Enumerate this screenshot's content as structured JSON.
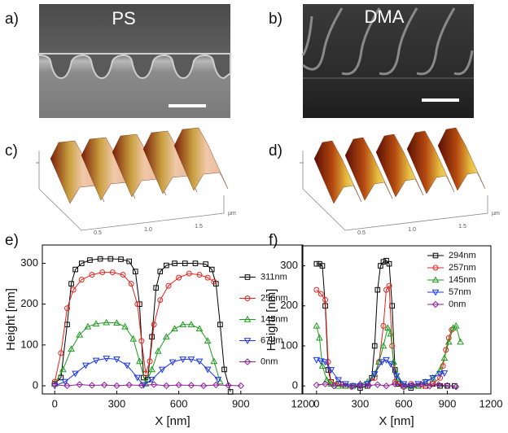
{
  "panels": {
    "a": {
      "label": "a)",
      "text": "PS"
    },
    "b": {
      "label": "b)",
      "text": "DMA"
    },
    "c": {
      "label": "c)",
      "ticks": [
        "0.5",
        "1.0",
        "1.5"
      ],
      "unit": "µm"
    },
    "d": {
      "label": "d)",
      "ticks": [
        "0.5",
        "1.0",
        "1.5"
      ],
      "unit": "µm"
    },
    "e": {
      "label": "e)"
    },
    "f": {
      "label": "f)"
    }
  },
  "chart_data": [
    {
      "type": "line",
      "x_label": "X [nm]",
      "y_label": "Height [nm]",
      "xlim": [
        -60,
        1200
      ],
      "ylim": [
        -20,
        345
      ],
      "xticks": [
        0,
        300,
        600,
        900,
        1200
      ],
      "yticks": [
        0,
        100,
        200,
        300
      ],
      "legend": "center right",
      "series": [
        {
          "name": "311nm",
          "color": "#000000",
          "marker": "square",
          "x": [
            0,
            30,
            60,
            80,
            100,
            130,
            170,
            220,
            270,
            320,
            360,
            390,
            410,
            430,
            450,
            470,
            490,
            510,
            540,
            580,
            630,
            680,
            730,
            760,
            780,
            800,
            820,
            850
          ],
          "values": [
            5,
            20,
            150,
            250,
            285,
            300,
            308,
            311,
            311,
            310,
            305,
            280,
            200,
            20,
            15,
            120,
            240,
            280,
            295,
            300,
            300,
            300,
            298,
            285,
            250,
            150,
            40,
            -15
          ]
        },
        {
          "name": "256nm",
          "color": "#e8201a",
          "marker": "circle",
          "x": [
            0,
            30,
            60,
            90,
            130,
            180,
            230,
            280,
            330,
            370,
            400,
            420,
            440,
            460,
            480,
            510,
            550,
            600,
            650,
            700,
            740,
            770
          ],
          "values": [
            10,
            80,
            190,
            235,
            260,
            272,
            278,
            278,
            272,
            250,
            200,
            110,
            30,
            60,
            150,
            210,
            245,
            265,
            275,
            272,
            265,
            255
          ]
        },
        {
          "name": "145nm",
          "color": "#1e9a1e",
          "marker": "triangle-up",
          "x": [
            0,
            40,
            80,
            120,
            160,
            200,
            250,
            300,
            340,
            380,
            410,
            440,
            470,
            500,
            540,
            580,
            620,
            660,
            700,
            740,
            770,
            800
          ],
          "values": [
            5,
            40,
            90,
            125,
            145,
            152,
            155,
            154,
            145,
            115,
            60,
            5,
            40,
            85,
            120,
            140,
            150,
            150,
            140,
            110,
            60,
            10
          ]
        },
        {
          "name": "67nm",
          "color": "#1a35e8",
          "marker": "triangle-down",
          "x": [
            0,
            50,
            100,
            150,
            200,
            250,
            300,
            350,
            400,
            430,
            470,
            520,
            570,
            620,
            660,
            700,
            740,
            790
          ],
          "values": [
            0,
            10,
            30,
            50,
            62,
            67,
            65,
            50,
            20,
            2,
            15,
            40,
            58,
            65,
            65,
            60,
            40,
            15
          ]
        },
        {
          "name": "0nm",
          "color": "#8e1e9a",
          "marker": "diamond",
          "x": [
            0,
            60,
            120,
            180,
            240,
            300,
            360,
            420,
            480,
            540,
            600,
            660,
            720,
            780,
            840,
            900
          ],
          "values": [
            2,
            0,
            3,
            1,
            2,
            0,
            2,
            1,
            3,
            0,
            2,
            1,
            0,
            2,
            1,
            0
          ]
        }
      ]
    },
    {
      "type": "line",
      "x_label": "X [nm]",
      "y_label": "Height [nm]",
      "xlim": [
        -100,
        1200
      ],
      "ylim": [
        -20,
        350
      ],
      "xticks": [
        0,
        300,
        600,
        900,
        1200
      ],
      "yticks": [
        0,
        100,
        200,
        300
      ],
      "legend": "upper right",
      "series": [
        {
          "name": "294nm",
          "color": "#000000",
          "marker": "square",
          "x": [
            0,
            20,
            40,
            60,
            80,
            100,
            150,
            200,
            250,
            300,
            350,
            380,
            400,
            420,
            440,
            460,
            480,
            500,
            520,
            540,
            560,
            600,
            650,
            700,
            750,
            800,
            850,
            900,
            950
          ],
          "values": [
            305,
            305,
            300,
            200,
            40,
            10,
            5,
            0,
            0,
            -5,
            0,
            20,
            100,
            240,
            300,
            310,
            313,
            305,
            200,
            40,
            5,
            0,
            -5,
            0,
            0,
            5,
            0,
            0,
            0
          ]
        },
        {
          "name": "257nm",
          "color": "#e8201a",
          "marker": "circle",
          "x": [
            0,
            30,
            60,
            80,
            100,
            150,
            200,
            250,
            300,
            350,
            400,
            430,
            460,
            480,
            500,
            520,
            540,
            600,
            650,
            700,
            750,
            800,
            850,
            870,
            890,
            910,
            930
          ],
          "values": [
            240,
            230,
            215,
            60,
            10,
            5,
            0,
            0,
            0,
            5,
            20,
            60,
            150,
            240,
            250,
            100,
            10,
            0,
            5,
            0,
            0,
            5,
            20,
            50,
            90,
            120,
            140
          ]
        },
        {
          "name": "145nm",
          "color": "#1e9a1e",
          "marker": "triangle-up",
          "x": [
            0,
            20,
            40,
            70,
            100,
            150,
            200,
            250,
            300,
            350,
            400,
            430,
            460,
            490,
            510,
            530,
            560,
            600,
            650,
            700,
            750,
            800,
            850,
            880,
            910,
            940,
            960,
            990
          ],
          "values": [
            150,
            120,
            50,
            15,
            5,
            0,
            0,
            0,
            5,
            10,
            30,
            60,
            100,
            145,
            130,
            60,
            20,
            0,
            0,
            0,
            10,
            20,
            40,
            70,
            110,
            145,
            150,
            110
          ]
        },
        {
          "name": "57nm",
          "color": "#1a35e8",
          "marker": "triangle-down",
          "x": [
            0,
            30,
            60,
            100,
            150,
            200,
            250,
            300,
            350,
            400,
            450,
            480,
            510,
            550,
            600,
            650,
            700,
            750,
            800,
            850,
            880
          ],
          "values": [
            65,
            62,
            60,
            40,
            15,
            5,
            0,
            0,
            5,
            30,
            60,
            65,
            55,
            25,
            5,
            0,
            5,
            10,
            20,
            30,
            32
          ]
        },
        {
          "name": "0nm",
          "color": "#8e1e9a",
          "marker": "diamond",
          "x": [
            0,
            60,
            120,
            180,
            240,
            300,
            360,
            420,
            480,
            540,
            600,
            660,
            720,
            780,
            840,
            900,
            960
          ],
          "values": [
            2,
            5,
            0,
            3,
            -2,
            4,
            1,
            3,
            0,
            5,
            -3,
            2,
            4,
            0,
            3,
            1,
            -2
          ]
        }
      ]
    }
  ]
}
